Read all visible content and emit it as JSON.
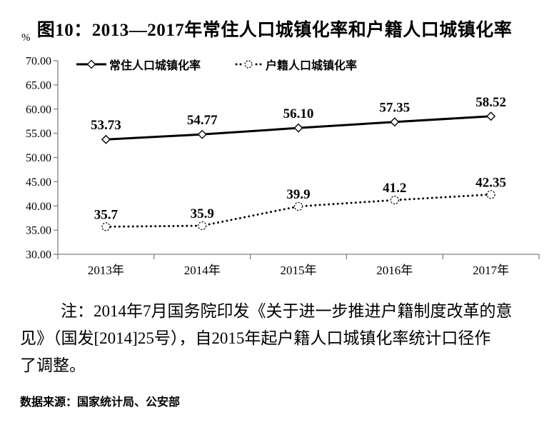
{
  "page": {
    "title": "图10：2013—2017年常住人口城镇化率和户籍人口城镇化率"
  },
  "chart_data": {
    "type": "line",
    "title": "图10：2013—2017年常住人口城镇化率和户籍人口城镇化率",
    "categories": [
      "2013年",
      "2014年",
      "2015年",
      "2016年",
      "2017年"
    ],
    "series": [
      {
        "name": "常住人口城镇化率",
        "values": [
          53.73,
          54.77,
          56.1,
          57.35,
          58.52
        ],
        "labels": [
          "53.73",
          "54.77",
          "56.10",
          "57.35",
          "58.52"
        ],
        "style": "solid-diamond"
      },
      {
        "name": "户籍人口城镇化率",
        "values": [
          35.7,
          35.9,
          39.9,
          41.2,
          42.35
        ],
        "labels": [
          "35.7",
          "35.9",
          "39.9",
          "41.2",
          "42.35"
        ],
        "style": "dotted-circle"
      }
    ],
    "ylabel": "%",
    "ylim": [
      30,
      70
    ],
    "ytick_step": 5,
    "ytick_labels": [
      "70.00",
      "65.00",
      "60.00",
      "55.00",
      "50.00",
      "45.00",
      "40.00",
      "35.00",
      "30.00"
    ],
    "grid": false,
    "legend_position": "top-left-inside",
    "colors": {
      "series": "#000000",
      "axis": "#808080",
      "text": "#000000",
      "background": "#ffffff"
    }
  },
  "note": {
    "line1": "注：2014年7月国务院印发《关于进一步推进户籍制度改革的意",
    "line2": "见》（国发[2014]25号），自2015年起户籍人口城镇化率统计口径作",
    "line3": "了调整。"
  },
  "source": "数据来源：国家统计局、公安部"
}
